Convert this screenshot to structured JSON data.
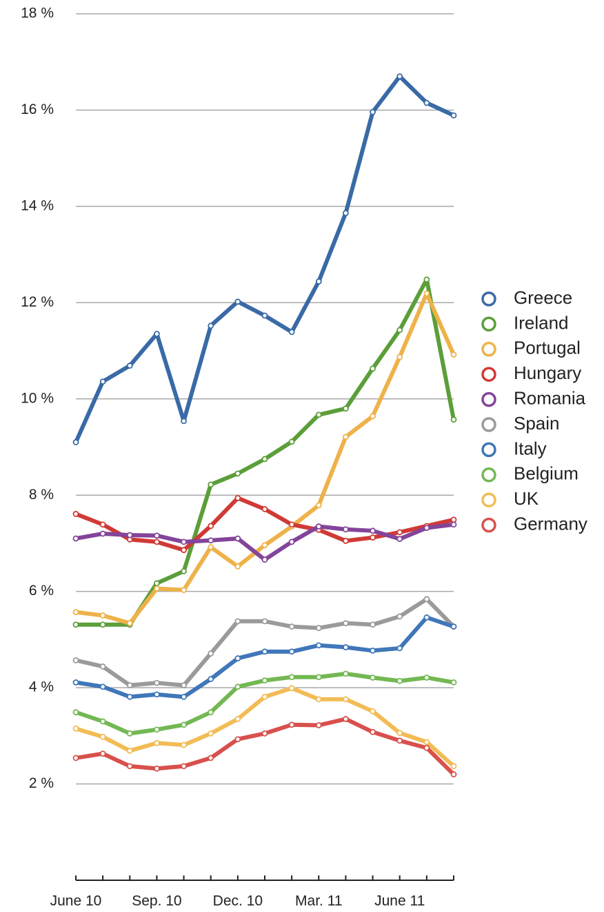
{
  "chart_data": {
    "type": "line",
    "categories": [
      "June 10",
      null,
      null,
      "Sep. 10",
      null,
      null,
      "Dec. 10",
      null,
      null,
      "Mar. 11",
      null,
      null,
      "June 11",
      null,
      null
    ],
    "ylim": [
      0,
      18
    ],
    "yticks": [
      {
        "value": 2,
        "label": "2 %"
      },
      {
        "value": 4,
        "label": "4 %"
      },
      {
        "value": 6,
        "label": "6 %"
      },
      {
        "value": 8,
        "label": "8 %"
      },
      {
        "value": 10,
        "label": "10 %"
      },
      {
        "value": 12,
        "label": "12 %"
      },
      {
        "value": 14,
        "label": "14 %"
      },
      {
        "value": 16,
        "label": "16 %"
      },
      {
        "value": 18,
        "label": "18 %"
      }
    ],
    "grid": true,
    "legend": "right",
    "series": [
      {
        "name": "Greece",
        "color": "#3a6aa6",
        "values": [
          9.1,
          10.36,
          10.69,
          11.35,
          9.54,
          11.52,
          12.02,
          11.73,
          11.39,
          12.44,
          13.86,
          15.96,
          16.7,
          16.15,
          15.89
        ]
      },
      {
        "name": "Ireland",
        "color": "#5c9e3a",
        "values": [
          5.31,
          5.31,
          5.31,
          6.17,
          6.42,
          8.22,
          8.45,
          8.75,
          9.11,
          9.67,
          9.8,
          10.63,
          11.43,
          12.48,
          9.57
        ]
      },
      {
        "name": "Portugal",
        "color": "#eeb24a",
        "values": [
          5.57,
          5.5,
          5.34,
          6.06,
          6.03,
          6.92,
          6.52,
          6.96,
          7.35,
          7.79,
          9.21,
          9.64,
          10.87,
          12.19,
          10.92
        ]
      },
      {
        "name": "Hungary",
        "color": "#d03a35",
        "values": [
          7.61,
          7.39,
          7.08,
          7.03,
          6.86,
          7.36,
          7.94,
          7.71,
          7.39,
          7.28,
          7.05,
          7.12,
          7.23,
          7.36,
          7.49
        ]
      },
      {
        "name": "Romania",
        "color": "#83449a",
        "values": [
          7.1,
          7.2,
          7.17,
          7.16,
          7.03,
          7.06,
          7.1,
          6.66,
          7.03,
          7.35,
          7.29,
          7.26,
          7.09,
          7.32,
          7.39
        ]
      },
      {
        "name": "Spain",
        "color": "#9a9a9a",
        "values": [
          4.57,
          4.44,
          4.05,
          4.1,
          4.05,
          4.71,
          5.38,
          5.38,
          5.27,
          5.24,
          5.34,
          5.31,
          5.48,
          5.84,
          5.27
        ]
      },
      {
        "name": "Italy",
        "color": "#3f77b9",
        "values": [
          4.11,
          4.02,
          3.81,
          3.86,
          3.81,
          4.18,
          4.61,
          4.75,
          4.75,
          4.88,
          4.84,
          4.77,
          4.82,
          5.46,
          5.27
        ]
      },
      {
        "name": "Belgium",
        "color": "#73b853",
        "values": [
          3.49,
          3.3,
          3.05,
          3.13,
          3.23,
          3.49,
          4.02,
          4.15,
          4.22,
          4.22,
          4.29,
          4.21,
          4.14,
          4.21,
          4.11
        ]
      },
      {
        "name": "UK",
        "color": "#f2bc55",
        "values": [
          3.15,
          2.98,
          2.69,
          2.85,
          2.81,
          3.05,
          3.35,
          3.81,
          3.99,
          3.76,
          3.76,
          3.51,
          3.06,
          2.87,
          2.37
        ]
      },
      {
        "name": "Germany",
        "color": "#d8504c",
        "values": [
          2.54,
          2.63,
          2.37,
          2.32,
          2.37,
          2.54,
          2.93,
          3.05,
          3.23,
          3.22,
          3.35,
          3.08,
          2.9,
          2.75,
          2.2
        ]
      }
    ]
  }
}
